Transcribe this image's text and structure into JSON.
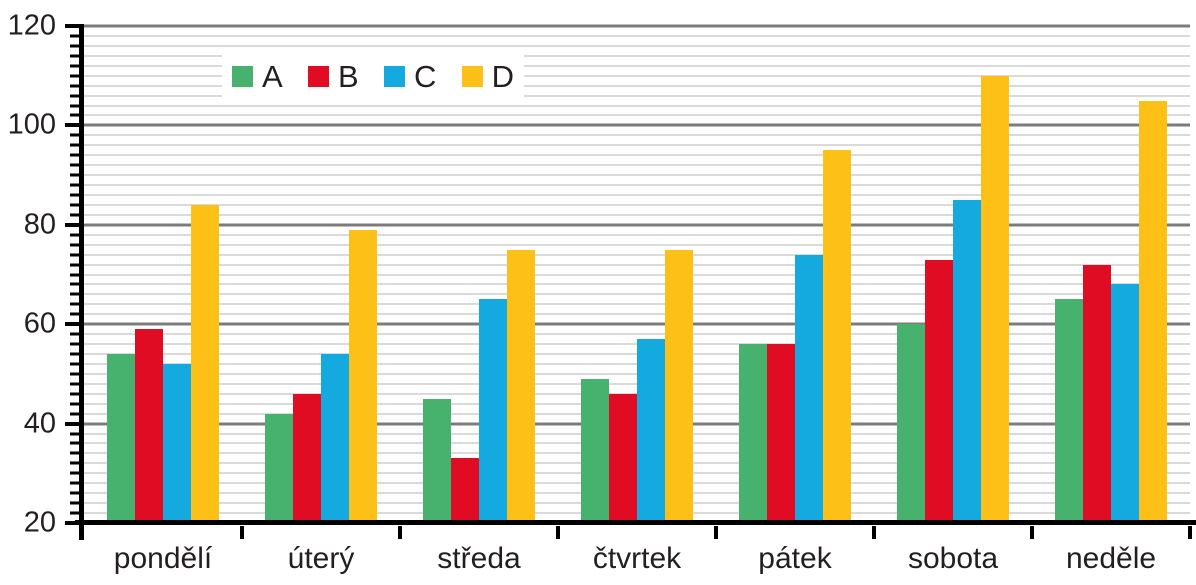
{
  "chart_data": {
    "type": "bar",
    "title": "",
    "xlabel": "",
    "ylabel": "",
    "categories": [
      "pondělí",
      "úterý",
      "středa",
      "čtvrtek",
      "pátek",
      "sobota",
      "neděle"
    ],
    "series": [
      {
        "name": "A",
        "color": "#47b26e",
        "values": [
          54,
          42,
          45,
          49,
          56,
          60,
          65
        ]
      },
      {
        "name": "B",
        "color": "#e00c23",
        "values": [
          59,
          46,
          33,
          46,
          56,
          73,
          72
        ]
      },
      {
        "name": "C",
        "color": "#15aadf",
        "values": [
          52,
          54,
          65,
          57,
          74,
          85,
          68
        ]
      },
      {
        "name": "D",
        "color": "#fcc017",
        "values": [
          84,
          79,
          75,
          75,
          95,
          110,
          105
        ]
      }
    ],
    "ylim": [
      20,
      120
    ],
    "ytick_step": 20,
    "yminor_step": 2,
    "ytick_labels": [
      "20",
      "40",
      "60",
      "80",
      "100",
      "120"
    ],
    "grid": "horizontal, minor every 2 and major every 20",
    "legend_position": "inside top-left",
    "colors": {
      "major_gridline": "#7c7c7c",
      "minor_gridline": "#dadada",
      "axis": "#000000",
      "text": "#231f20",
      "background": "#ffffff"
    }
  }
}
